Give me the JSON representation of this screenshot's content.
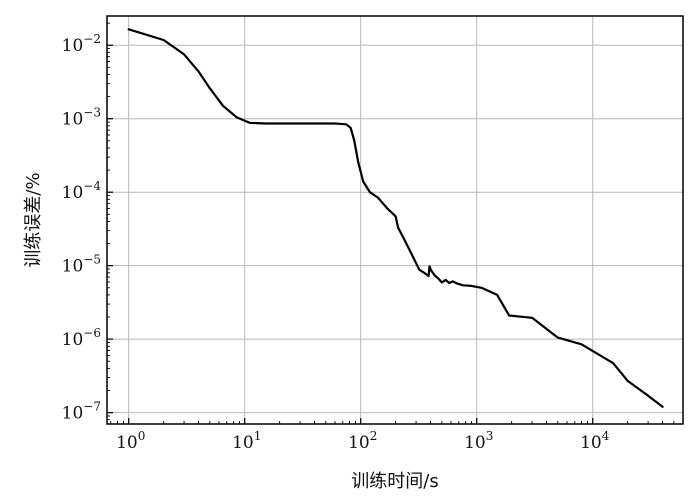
{
  "chart_data": {
    "type": "line",
    "xlabel": "训练时间/s",
    "ylabel": "训练误差/%",
    "x_scale": "log",
    "y_scale": "log",
    "xlim": [
      0.65,
      60000
    ],
    "ylim": [
      7e-08,
      0.025
    ],
    "grid": true,
    "x_ticks": [
      {
        "value": 1,
        "base": "10",
        "exp": "0"
      },
      {
        "value": 10,
        "base": "10",
        "exp": "1"
      },
      {
        "value": 100,
        "base": "10",
        "exp": "2"
      },
      {
        "value": 1000,
        "base": "10",
        "exp": "3"
      },
      {
        "value": 10000,
        "base": "10",
        "exp": "4"
      }
    ],
    "y_ticks": [
      {
        "value": 1e-07,
        "base": "10",
        "exp": "−7"
      },
      {
        "value": 1e-06,
        "base": "10",
        "exp": "−6"
      },
      {
        "value": 1e-05,
        "base": "10",
        "exp": "−5"
      },
      {
        "value": 0.0001,
        "base": "10",
        "exp": "−4"
      },
      {
        "value": 0.001,
        "base": "10",
        "exp": "−3"
      },
      {
        "value": 0.01,
        "base": "10",
        "exp": "−2"
      }
    ],
    "series": [
      {
        "color": "#000000",
        "points": [
          [
            1.0,
            0.0165
          ],
          [
            2.0,
            0.0118
          ],
          [
            3.0,
            0.0075
          ],
          [
            4.0,
            0.0044
          ],
          [
            5.0,
            0.0026
          ],
          [
            6.5,
            0.0015
          ],
          [
            8.5,
            0.00105
          ],
          [
            11,
            0.00088
          ],
          [
            15,
            0.00086
          ],
          [
            30,
            0.00086
          ],
          [
            60,
            0.00086
          ],
          [
            75,
            0.00084
          ],
          [
            82,
            0.00075
          ],
          [
            88,
            0.0005
          ],
          [
            95,
            0.00026
          ],
          [
            105,
            0.00014
          ],
          [
            120,
            0.0001
          ],
          [
            140,
            8.5e-05
          ],
          [
            170,
            6e-05
          ],
          [
            200,
            4.7e-05
          ],
          [
            210,
            3.3e-05
          ],
          [
            240,
            2.2e-05
          ],
          [
            280,
            1.35e-05
          ],
          [
            320,
            8.8e-06
          ],
          [
            360,
            7.8e-06
          ],
          [
            385,
            7.2e-06
          ],
          [
            392,
            9.8e-06
          ],
          [
            405,
            8.6e-06
          ],
          [
            430,
            7.5e-06
          ],
          [
            470,
            6.6e-06
          ],
          [
            500,
            5.9e-06
          ],
          [
            540,
            6.4e-06
          ],
          [
            580,
            5.8e-06
          ],
          [
            620,
            6.1e-06
          ],
          [
            680,
            5.7e-06
          ],
          [
            760,
            5.4e-06
          ],
          [
            900,
            5.3e-06
          ],
          [
            1100,
            5e-06
          ],
          [
            1500,
            4e-06
          ],
          [
            1900,
            2.1e-06
          ],
          [
            3000,
            1.95e-06
          ],
          [
            5000,
            1.05e-06
          ],
          [
            8000,
            8.5e-07
          ],
          [
            15000,
            4.7e-07
          ],
          [
            20000,
            2.7e-07
          ],
          [
            30000,
            1.7e-07
          ],
          [
            40000,
            1.2e-07
          ]
        ]
      }
    ]
  }
}
